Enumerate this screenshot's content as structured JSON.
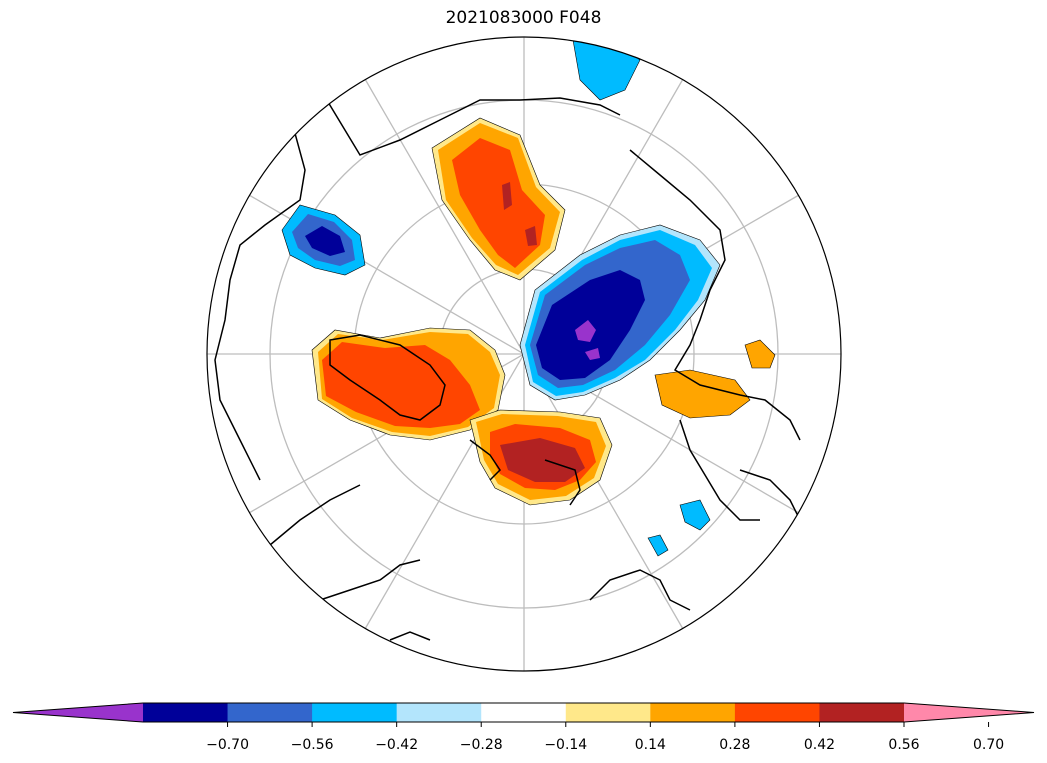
{
  "title": "2021083000 F048",
  "colorbar": {
    "colors": [
      "#9933cc",
      "#000099",
      "#3366cc",
      "#00bbff",
      "#b3e5fc",
      "#ffffff",
      "#ffe88a",
      "#ffa500",
      "#ff4500",
      "#b22222",
      "#ff88aa"
    ],
    "ticks": [
      "−0.70",
      "−0.56",
      "−0.42",
      "−0.28",
      "−0.14",
      "0.14",
      "0.28",
      "0.42",
      "0.56",
      "0.70"
    ]
  }
}
